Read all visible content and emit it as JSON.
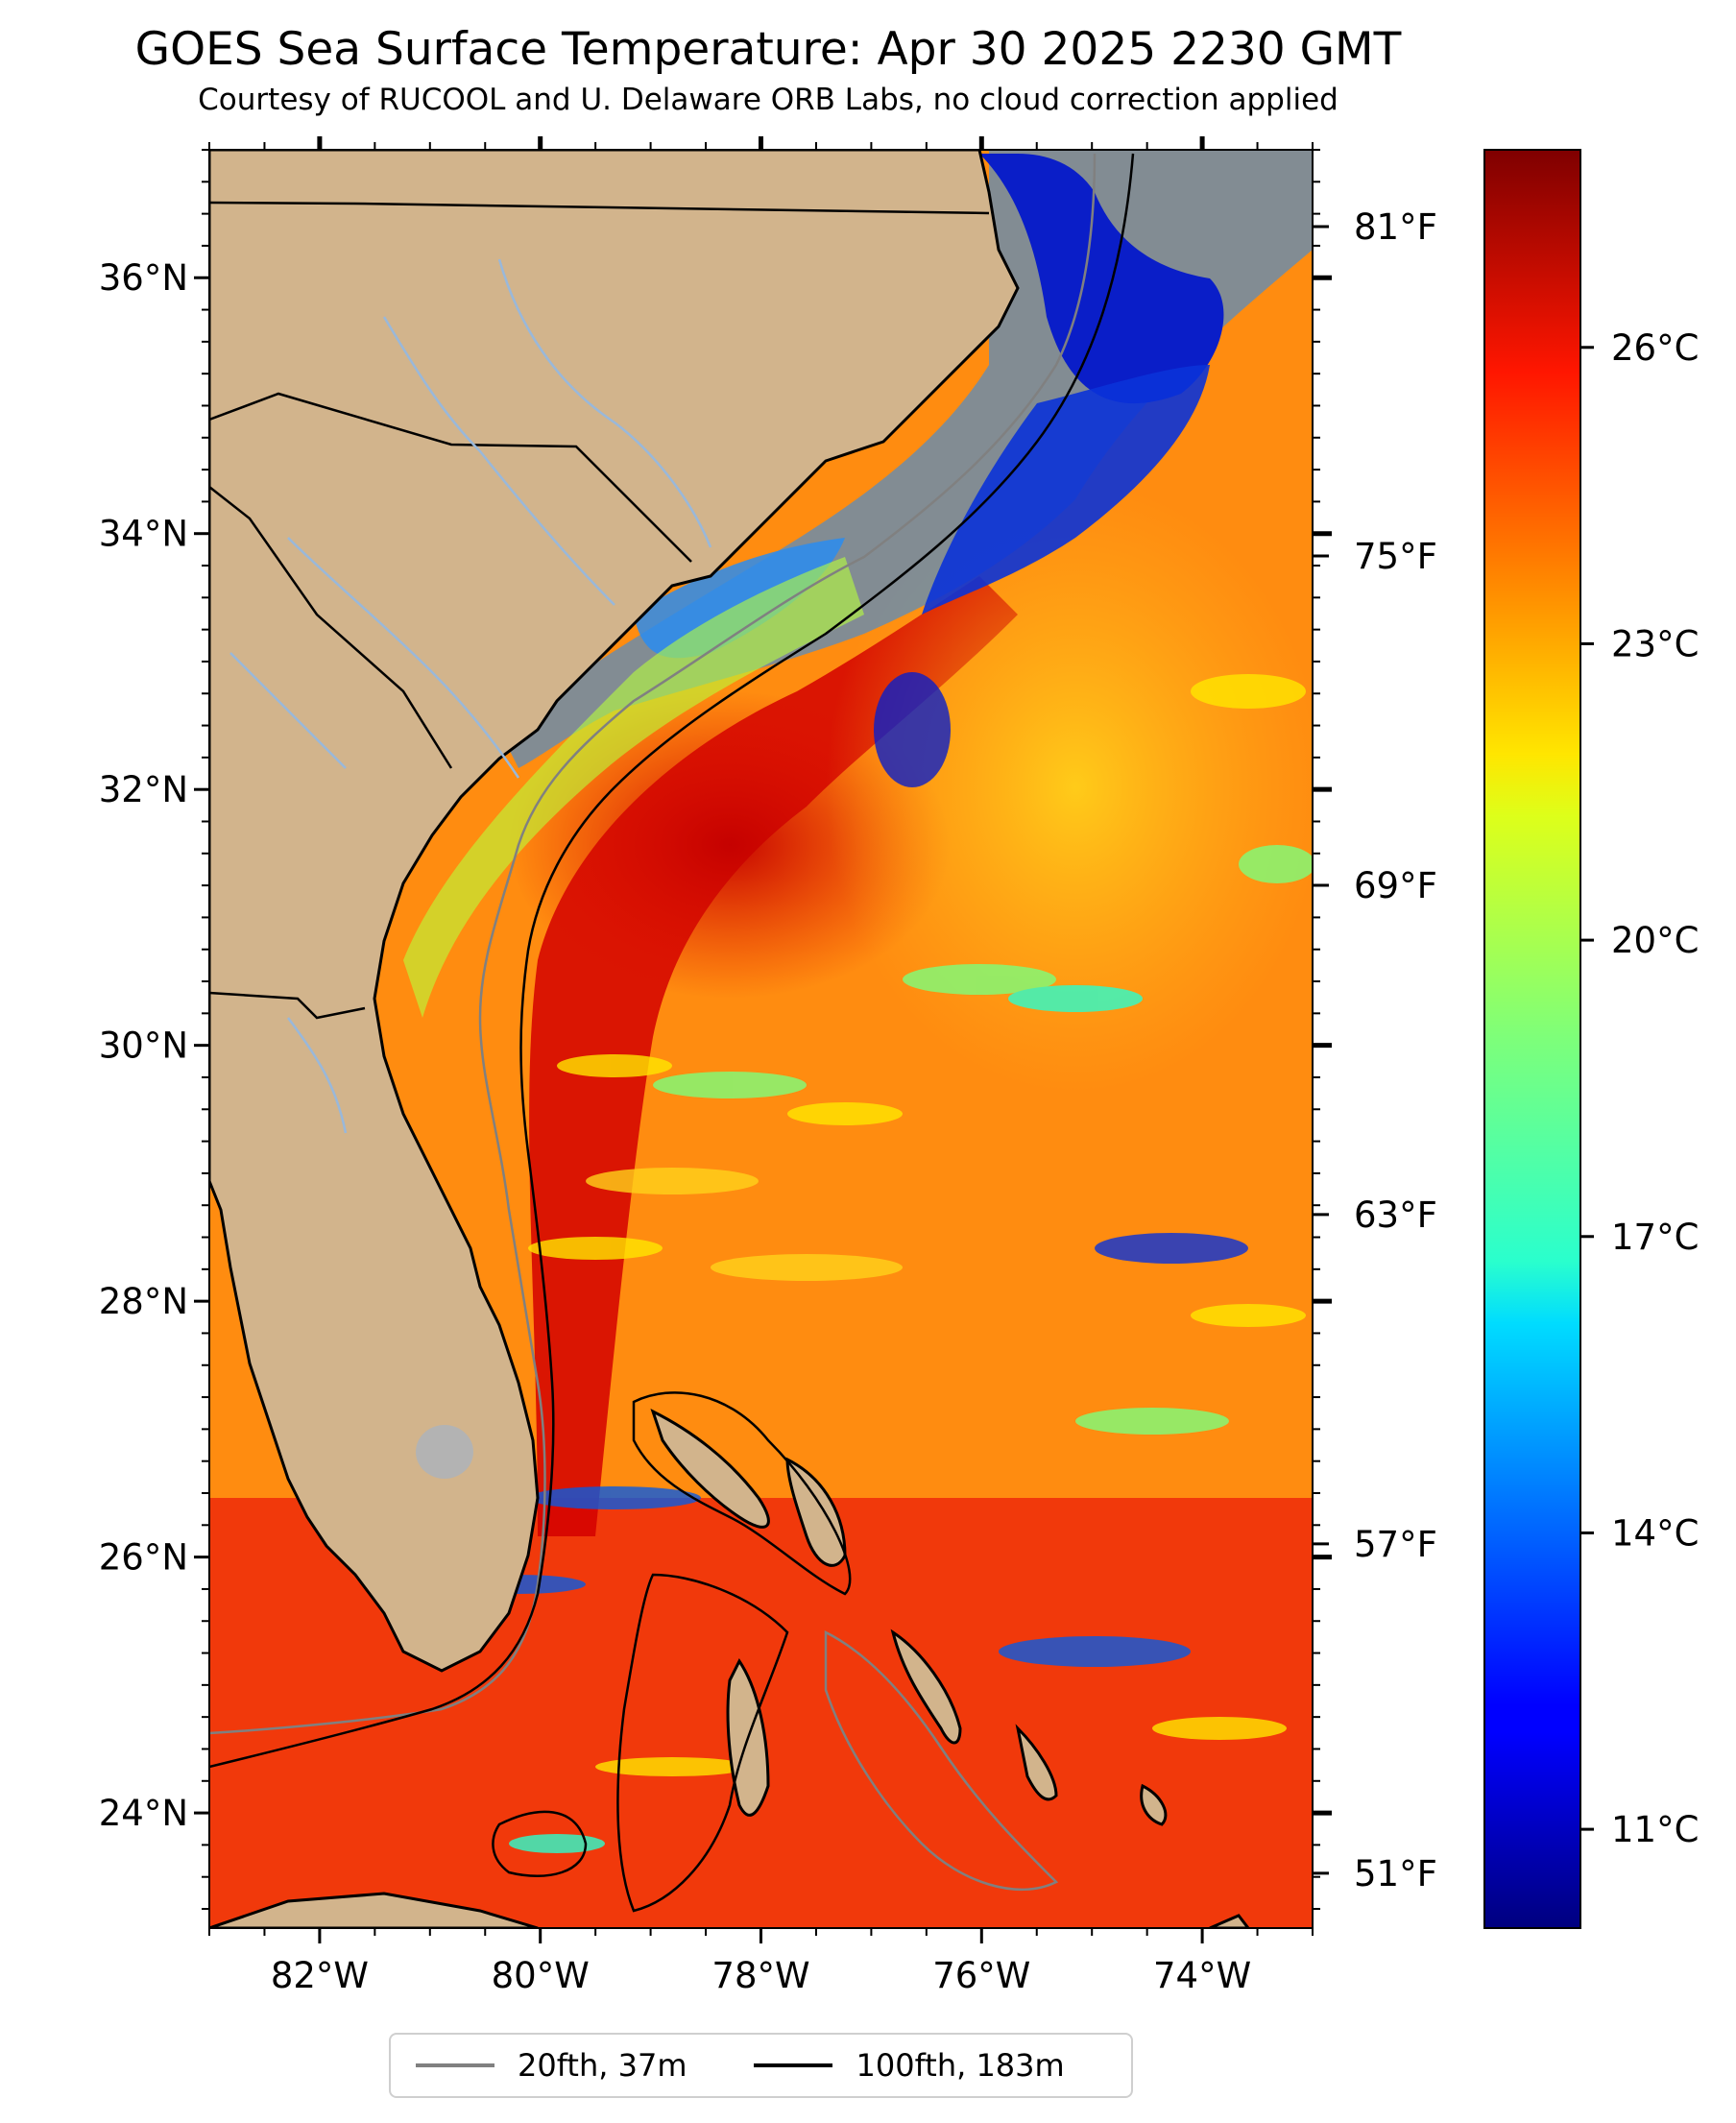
{
  "header": {
    "title": "GOES Sea Surface Temperature: Apr 30 2025 2230 GMT",
    "subtitle": "Courtesy of RUCOOL and U. Delaware ORB Labs, no cloud correction applied"
  },
  "map": {
    "lon_range": [
      -83,
      -73
    ],
    "lat_range": [
      23.1,
      37
    ],
    "lon_ticks": [
      {
        "value": -82,
        "label": "82°W"
      },
      {
        "value": -80,
        "label": "80°W"
      },
      {
        "value": -78,
        "label": "78°W"
      },
      {
        "value": -76,
        "label": "76°W"
      },
      {
        "value": -74,
        "label": "74°W"
      }
    ],
    "lat_ticks": [
      {
        "value": 36,
        "label": "36°N"
      },
      {
        "value": 34,
        "label": "34°N"
      },
      {
        "value": 32,
        "label": "32°N"
      },
      {
        "value": 30,
        "label": "30°N"
      },
      {
        "value": 28,
        "label": "28°N"
      },
      {
        "value": 26,
        "label": "26°N"
      },
      {
        "value": 24,
        "label": "24°N"
      }
    ],
    "colors": {
      "land": "#d2b48c",
      "ocean_warm": "#ee2a0a",
      "ocean_mid": "#ff9a12",
      "cold": "#0a1ec8",
      "coastline": "#000000",
      "rivers": "#99b8da",
      "isobath_20fth": "#808080",
      "isobath_100fth": "#000000"
    },
    "colormap": "jet"
  },
  "colorbar": {
    "celsius_range": [
      10,
      28
    ],
    "celsius_ticks": [
      {
        "value": 11,
        "label": "11°C"
      },
      {
        "value": 14,
        "label": "14°C"
      },
      {
        "value": 17,
        "label": "17°C"
      },
      {
        "value": 20,
        "label": "20°C"
      },
      {
        "value": 23,
        "label": "23°C"
      },
      {
        "value": 26,
        "label": "26°C"
      }
    ],
    "fahrenheit_ticks": [
      {
        "value": 51,
        "label": "51°F"
      },
      {
        "value": 57,
        "label": "57°F"
      },
      {
        "value": 63,
        "label": "63°F"
      },
      {
        "value": 69,
        "label": "69°F"
      },
      {
        "value": 75,
        "label": "75°F"
      },
      {
        "value": 81,
        "label": "81°F"
      }
    ]
  },
  "legend": {
    "items": [
      {
        "label": "20fth, 37m",
        "color": "#808080"
      },
      {
        "label": "100fth, 183m",
        "color": "#000000"
      }
    ]
  }
}
